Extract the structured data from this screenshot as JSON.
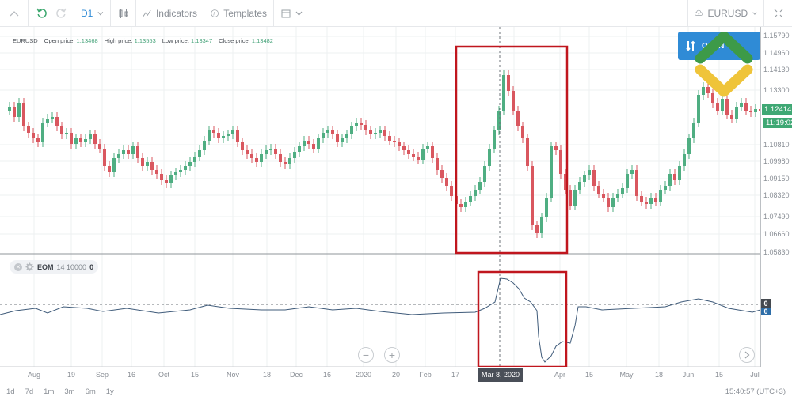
{
  "toolbar": {
    "collapse_icon": "chevron-up-icon",
    "undo_icon": "undo-icon",
    "redo_icon": "redo-icon",
    "timeframe": "D1",
    "chart_type_icon": "candlestick-icon",
    "indicators_label": "Indicators",
    "templates_label": "Templates",
    "calendar_icon": "calendar-icon",
    "symbol": "EURUSD",
    "fullscreen_icon": "fullscreen-icon"
  },
  "legend": {
    "symbol": "EURUSD",
    "open_label": "Open price:",
    "open_value": "1.13468",
    "high_label": "High price:",
    "high_value": "1.13553",
    "low_label": "Low price:",
    "low_value": "1.13347",
    "close_label": "Close price:",
    "close_value": "1.13482"
  },
  "trade_button": {
    "label": "OPEN"
  },
  "price_axis": {
    "labels": [
      "1.15790",
      "1.14960",
      "1.14130",
      "1.13300",
      "1.10810",
      "1.09980",
      "1.09150",
      "1.08320",
      "1.07490",
      "1.06660",
      "1.05830"
    ],
    "current_price": "1.12414",
    "countdown": "11:19:02"
  },
  "indicator": {
    "name": "EOM",
    "params": "14 10000",
    "value": "0",
    "axis_zero_label": "0",
    "axis_value_label": "0"
  },
  "time_axis": {
    "labels": [
      "Aug",
      "19",
      "Sep",
      "16",
      "Oct",
      "15",
      "Nov",
      "18",
      "Dec",
      "16",
      "2020",
      "20",
      "Feb",
      "17",
      "16",
      "Apr",
      "15",
      "May",
      "18",
      "Jun",
      "15",
      "Jul"
    ],
    "crosshair_date": "Mar 8, 2020"
  },
  "ranges": [
    "1d",
    "7d",
    "1m",
    "3m",
    "6m",
    "1y"
  ],
  "clock": "15:40:57 (UTC+3)",
  "colors": {
    "bull": "#4fae82",
    "bear": "#d9575f",
    "highlight_box": "#c0161e",
    "accent": "#2f8bd6",
    "eom_line": "#3f5b7a"
  }
}
